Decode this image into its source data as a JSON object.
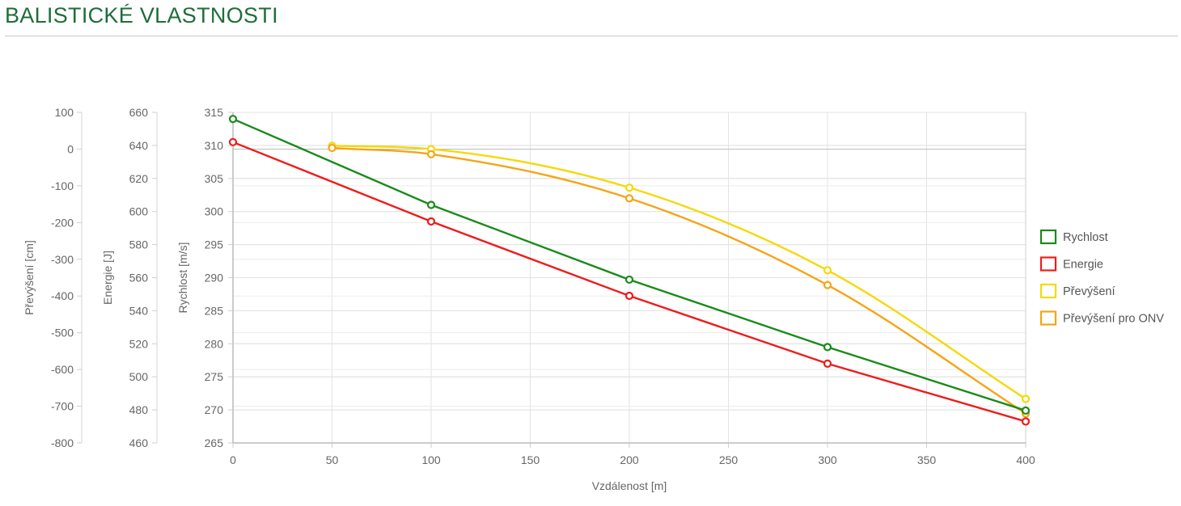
{
  "page": {
    "title": "BALISTICKÉ VLASTNOSTI"
  },
  "chart_data": {
    "type": "line",
    "xlabel": "Vzdálenost [m]",
    "x_ticks": [
      0,
      50,
      100,
      150,
      200,
      250,
      300,
      350,
      400
    ],
    "xlim": [
      0,
      400
    ],
    "axes": {
      "drop": {
        "label": "Převýšení [cm]",
        "range": [
          -800,
          100
        ],
        "ticks": [
          100,
          0,
          -100,
          -200,
          -300,
          -400,
          -500,
          -600,
          -700,
          -800
        ]
      },
      "energy": {
        "label": "Energie [J]",
        "range": [
          460,
          660
        ],
        "ticks": [
          660,
          640,
          620,
          600,
          580,
          560,
          540,
          520,
          500,
          480,
          460
        ]
      },
      "velocity": {
        "label": "Rychlost [m/s]",
        "range": [
          265,
          315
        ],
        "ticks": [
          315,
          310,
          305,
          300,
          295,
          290,
          285,
          280,
          275,
          270,
          265
        ]
      }
    },
    "grid": true,
    "legend_position": "right",
    "series": [
      {
        "name": "Rychlost",
        "axis": "velocity",
        "color": "#1a8a1a",
        "smooth": false,
        "x": [
          0,
          100,
          200,
          300,
          400
        ],
        "values": [
          314.0,
          301.0,
          289.7,
          279.5,
          269.9
        ]
      },
      {
        "name": "Energie",
        "axis": "energy",
        "color": "#ee1c1c",
        "smooth": false,
        "x": [
          0,
          100,
          200,
          300,
          400
        ],
        "values": [
          642,
          594,
          549,
          508,
          473
        ]
      },
      {
        "name": "Převýšení",
        "axis": "drop",
        "color": "#f5d90a",
        "smooth": true,
        "x": [
          50,
          100,
          200,
          300,
          400
        ],
        "values": [
          9,
          0,
          -105,
          -330,
          -680
        ]
      },
      {
        "name": "Převýšení pro ONV",
        "axis": "drop",
        "color": "#f5a516",
        "smooth": true,
        "x": [
          50,
          100,
          200,
          300,
          400
        ],
        "values": [
          3,
          -14,
          -134,
          -370,
          -720
        ]
      }
    ]
  }
}
